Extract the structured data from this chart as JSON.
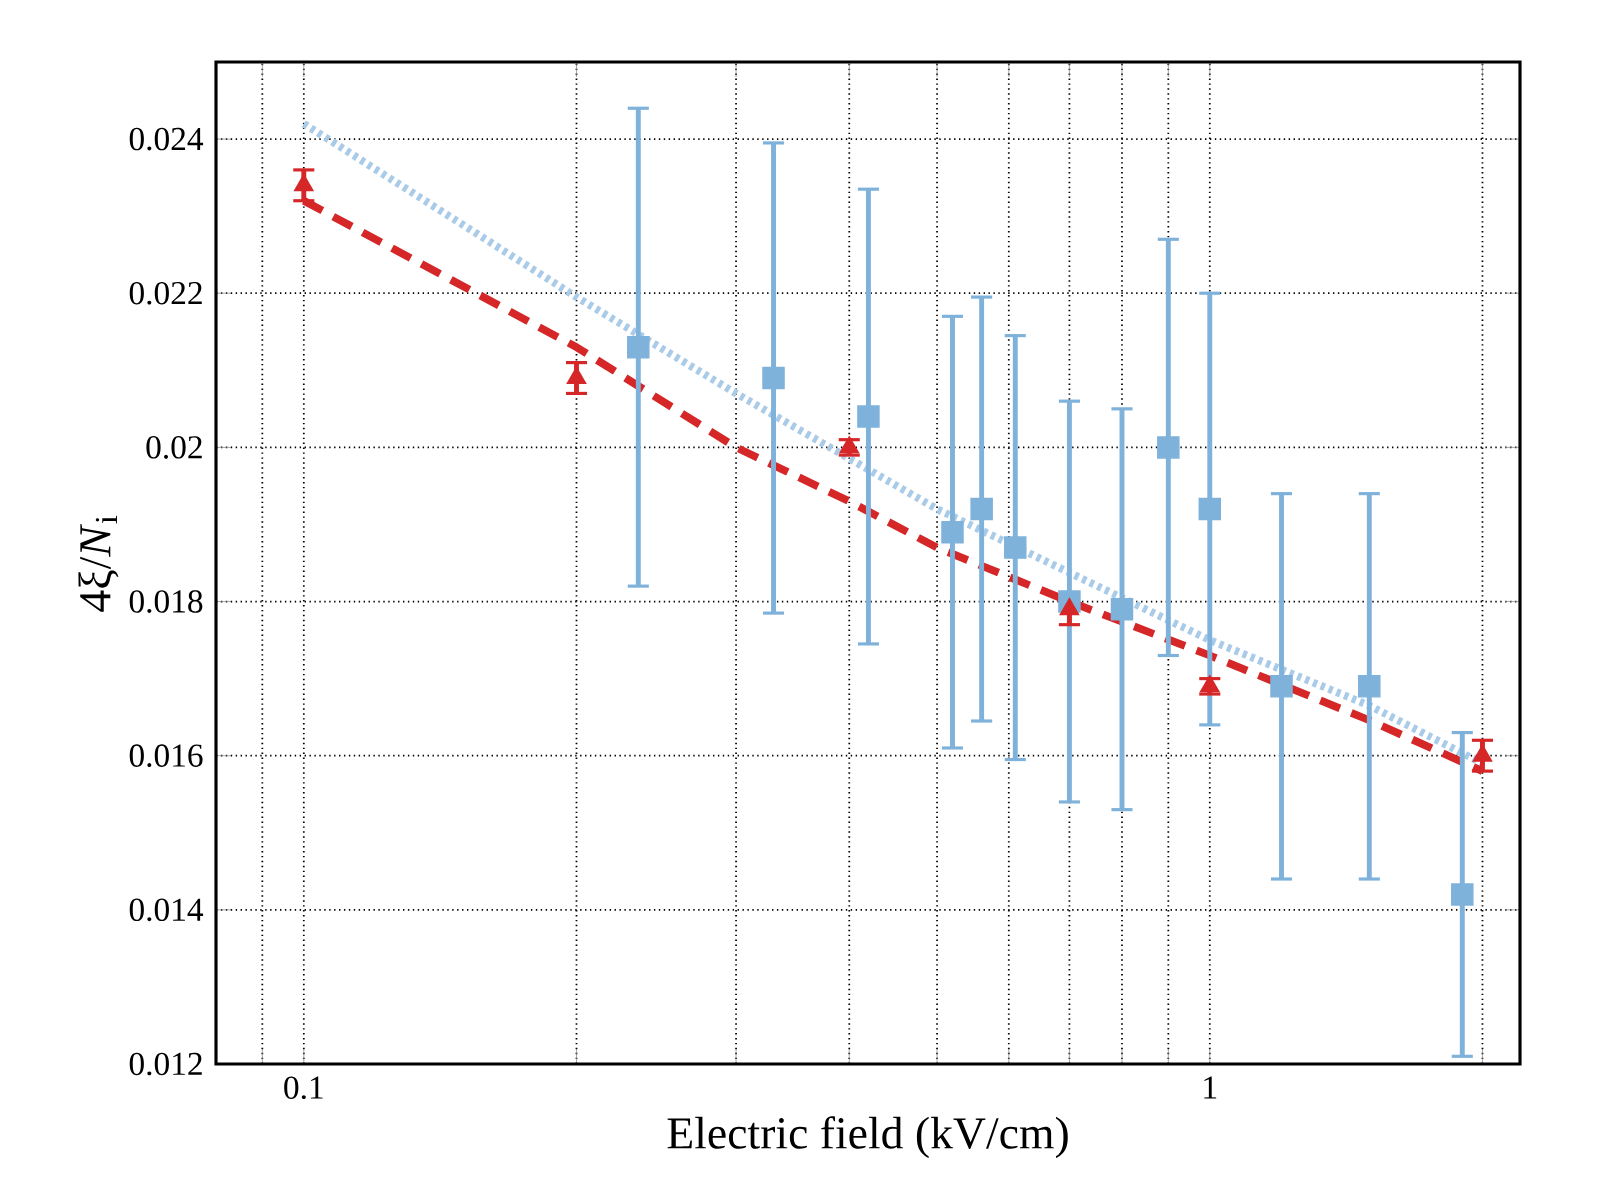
{
  "chart_data": {
    "type": "scatter",
    "xlabel": "Electric field (kV/cm)",
    "ylabel": "4ξ/*N*$_{i}$",
    "log": "x",
    "grid": true,
    "xlim": [
      0.08,
      2.2
    ],
    "ylim": [
      0.012,
      0.025
    ],
    "xticks": [
      {
        "value": 0.09,
        "label": null
      },
      0.1,
      {
        "value": 0.2,
        "label": null
      },
      {
        "value": 0.3,
        "label": null
      },
      {
        "value": 0.4,
        "label": null
      },
      {
        "value": 0.5,
        "label": null
      },
      {
        "value": 0.6,
        "label": null
      },
      {
        "value": 0.7,
        "label": null
      },
      {
        "value": 0.8,
        "label": null
      },
      {
        "value": 0.9,
        "label": null
      },
      1,
      {
        "value": 2,
        "label": null
      }
    ],
    "yticks": [
      0.012,
      0.014,
      0.016,
      0.018,
      0.02,
      0.022,
      0.024
    ],
    "series": [
      {
        "type": "line",
        "color": "#a9cbe8",
        "line_style": "dotted",
        "marker": "none",
        "x": [
          0.1,
          0.2,
          0.3,
          0.5,
          1.0,
          1.5,
          2.0
        ],
        "values": [
          0.0242,
          0.02195,
          0.0207,
          0.0192,
          0.0175,
          0.01665,
          0.0159
        ]
      },
      {
        "type": "line",
        "color": "#d62728",
        "line_style": "dashed",
        "marker": "none",
        "x": [
          0.1,
          0.2,
          0.3,
          0.4,
          0.5,
          0.7,
          1.0,
          1.5,
          2.0
        ],
        "values": [
          0.0232,
          0.0213,
          0.02,
          0.0193,
          0.0187,
          0.018,
          0.0173,
          0.01646,
          0.0158
        ]
      },
      {
        "color": "#7fb2da",
        "marker": "square",
        "x": [
          0.234,
          0.33,
          0.42,
          0.52,
          0.56,
          0.61,
          0.7,
          0.8,
          0.9,
          1.0,
          1.2,
          1.5,
          1.9
        ],
        "values": [
          0.0213,
          0.0209,
          0.0204,
          0.0189,
          0.0192,
          0.0187,
          0.018,
          0.0179,
          0.02,
          0.0192,
          0.0169,
          0.0169,
          0.0142
        ],
        "errors": [
          0.0031,
          0.00305,
          0.00295,
          0.0028,
          0.00275,
          0.00275,
          0.0026,
          0.0026,
          0.0027,
          0.0028,
          0.0025,
          0.0025,
          0.0021
        ]
      },
      {
        "color": "#d62728",
        "marker": "triangle",
        "x": [
          0.1,
          0.2,
          0.4,
          0.7,
          1.0,
          2.0
        ],
        "values": [
          0.0234,
          0.0209,
          0.02,
          0.0179,
          0.0169,
          0.016
        ],
        "errors": [
          0.0002,
          0.0002,
          0.0001,
          0.0002,
          0.0001,
          0.0002
        ]
      }
    ]
  }
}
